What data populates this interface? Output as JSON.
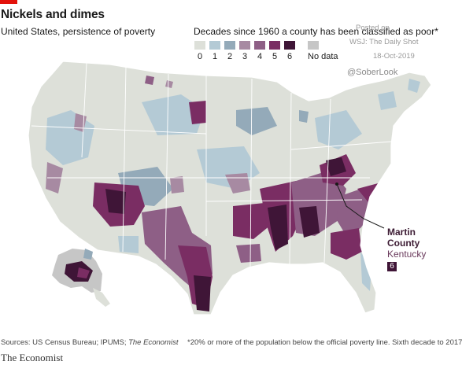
{
  "header": {
    "title": "Nickels and dimes",
    "subtitle": "United States, persistence of poverty"
  },
  "legend": {
    "title": "Decades since 1960 a county has been classified as poor*",
    "items": [
      {
        "label": "0",
        "color": "#dde0d9"
      },
      {
        "label": "1",
        "color": "#b4cad5"
      },
      {
        "label": "2",
        "color": "#94aab9"
      },
      {
        "label": "3",
        "color": "#a78aa2"
      },
      {
        "label": "4",
        "color": "#8e5f86"
      },
      {
        "label": "5",
        "color": "#7a2d63"
      },
      {
        "label": "6",
        "color": "#3f1537"
      }
    ],
    "no_data": {
      "label": "No data",
      "color": "#c6c6c6"
    }
  },
  "watermark": {
    "posted_on": "Posted on",
    "source": "WSJ: The Daily Shot",
    "date": "18-Oct-2019",
    "handle": "@SoberLook"
  },
  "callout": {
    "county": "Martin",
    "county2": "County",
    "state": "Kentucky",
    "value": "6"
  },
  "footer": {
    "sources_prefix": "Sources: US Census Bureau; IPUMS; ",
    "sources_italic": "The Economist",
    "note": "*20% or more of the population below the official poverty line. Sixth decade to 2017",
    "brand": "The Economist"
  }
}
